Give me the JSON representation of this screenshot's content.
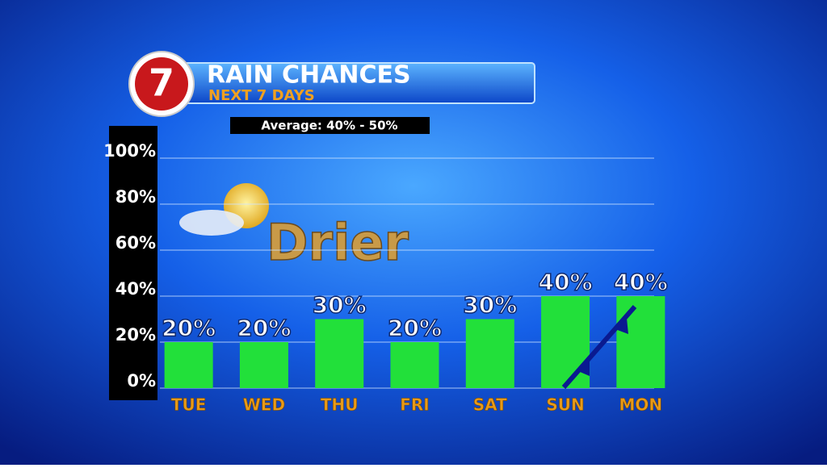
{
  "chart_data": {
    "type": "bar",
    "logo": "7",
    "title": "RAIN CHANCES",
    "subtitle": "NEXT 7 DAYS",
    "annotations": [
      "Average: 40% - 50%",
      "Drier"
    ],
    "categories": [
      "TUE",
      "WED",
      "THU",
      "FRI",
      "SAT",
      "SUN",
      "MON"
    ],
    "values": [
      20,
      20,
      30,
      20,
      30,
      40,
      40
    ],
    "value_labels": [
      "20%",
      "20%",
      "30%",
      "20%",
      "30%",
      "40%",
      "40%"
    ],
    "color": "#22e03a",
    "ylim": [
      0,
      100
    ],
    "yticks": [
      {
        "value": 0,
        "label": "0%"
      },
      {
        "value": 20,
        "label": "20%"
      },
      {
        "value": 40,
        "label": "40%"
      },
      {
        "value": 60,
        "label": "60%"
      },
      {
        "value": 80,
        "label": "80%"
      },
      {
        "value": 100,
        "label": "100%"
      }
    ],
    "grid": true
  }
}
